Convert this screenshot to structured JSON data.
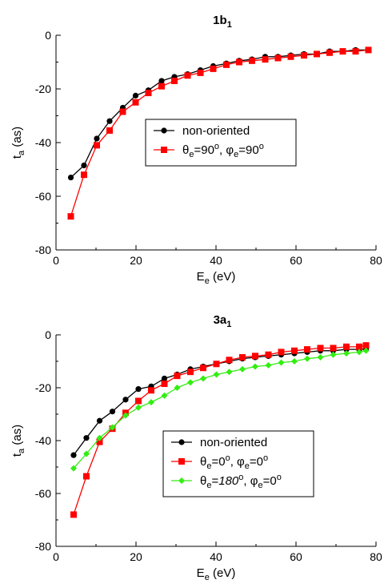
{
  "chart_data": [
    {
      "type": "line",
      "title": "1b",
      "title_sub": "1",
      "xlabel": "E",
      "xlabel_sub": "e",
      "xlabel_unit": "(eV)",
      "ylabel": "t",
      "ylabel_sub": "a",
      "ylabel_unit": "(as)",
      "xlim": [
        0,
        80
      ],
      "ylim": [
        -80,
        0
      ],
      "xticks": [
        "0",
        "20",
        "40",
        "60",
        "80"
      ],
      "yticks": [
        "0",
        "-20",
        "-40",
        "-60",
        "-80"
      ],
      "grid": false,
      "legend_position": "middle-center",
      "series": [
        {
          "legend": [
            {
              "t": "non-oriented"
            }
          ],
          "color": "#000000",
          "marker": "circle",
          "x": [
            3.7,
            7.0,
            10.2,
            13.4,
            16.7,
            19.9,
            23.1,
            26.4,
            29.6,
            32.9,
            36.1,
            39.3,
            42.6,
            45.8,
            49.0,
            52.3,
            55.5,
            58.7,
            62.0,
            65.2,
            68.4,
            71.7,
            74.9,
            78.1
          ],
          "y": [
            -53.0,
            -48.5,
            -38.5,
            -32.0,
            -27.0,
            -22.5,
            -20.5,
            -17.0,
            -15.5,
            -14.5,
            -13.0,
            -11.5,
            -10.5,
            -9.5,
            -9.0,
            -8.0,
            -8.0,
            -7.5,
            -7.0,
            -7.0,
            -6.0,
            -6.0,
            -5.5,
            -5.5
          ]
        },
        {
          "legend": [
            {
              "t": "θ"
            },
            {
              "t": "e",
              "sub": true
            },
            {
              "t": "=90"
            },
            {
              "t": "o",
              "sup": true
            },
            {
              "t": ", φ"
            },
            {
              "t": "e",
              "sub": true
            },
            {
              "t": "=90"
            },
            {
              "t": "o",
              "sup": true
            }
          ],
          "color": "#ff0000",
          "marker": "square",
          "x": [
            3.7,
            7.0,
            10.2,
            13.4,
            16.7,
            19.9,
            23.1,
            26.4,
            29.6,
            32.9,
            36.1,
            39.3,
            42.6,
            45.8,
            49.0,
            52.3,
            55.5,
            58.7,
            62.0,
            65.2,
            68.4,
            71.7,
            74.9,
            78.1
          ],
          "y": [
            -67.5,
            -52.0,
            -41.0,
            -35.5,
            -28.5,
            -25.0,
            -21.5,
            -19.0,
            -17.0,
            -15.0,
            -14.0,
            -12.5,
            -11.0,
            -10.0,
            -9.5,
            -9.0,
            -8.5,
            -8.0,
            -7.5,
            -7.0,
            -6.5,
            -6.0,
            -6.0,
            -5.5
          ]
        }
      ]
    },
    {
      "type": "line",
      "title": "3a",
      "title_sub": "1",
      "xlabel": "E",
      "xlabel_sub": "e",
      "xlabel_unit": "(eV)",
      "ylabel": "t",
      "ylabel_sub": "a",
      "ylabel_unit": "(as)",
      "xlim": [
        0,
        80
      ],
      "ylim": [
        -80,
        0
      ],
      "xticks": [
        "0",
        "20",
        "40",
        "60",
        "80"
      ],
      "yticks": [
        "0",
        "-20",
        "-40",
        "-60",
        "-80"
      ],
      "grid": false,
      "legend_position": "center-right",
      "series": [
        {
          "legend": [
            {
              "t": "non-oriented"
            }
          ],
          "color": "#000000",
          "marker": "circle",
          "x": [
            4.4,
            7.6,
            10.9,
            14.1,
            17.4,
            20.6,
            23.8,
            27.1,
            30.3,
            33.6,
            36.8,
            40.1,
            43.3,
            46.6,
            49.8,
            53.1,
            56.3,
            59.6,
            62.8,
            66.1,
            69.3,
            72.6,
            75.8,
            77.5
          ],
          "y": [
            -45.5,
            -39.0,
            -32.5,
            -29.0,
            -24.5,
            -20.5,
            -19.5,
            -16.5,
            -15.0,
            -13.0,
            -12.0,
            -11.0,
            -10.0,
            -9.0,
            -8.5,
            -8.0,
            -7.5,
            -7.0,
            -6.5,
            -6.0,
            -6.0,
            -5.5,
            -5.5,
            -5.5
          ]
        },
        {
          "legend": [
            {
              "t": "θ"
            },
            {
              "t": "e",
              "sub": true
            },
            {
              "t": "=0"
            },
            {
              "t": "o",
              "sup": true
            },
            {
              "t": ", φ"
            },
            {
              "t": "e",
              "sub": true
            },
            {
              "t": "=0"
            },
            {
              "t": "o",
              "sup": true
            }
          ],
          "color": "#ff0000",
          "marker": "square",
          "x": [
            4.4,
            7.6,
            10.9,
            14.1,
            17.4,
            20.6,
            23.8,
            27.1,
            30.3,
            33.6,
            36.8,
            40.1,
            43.3,
            46.6,
            49.8,
            53.1,
            56.3,
            59.6,
            62.8,
            66.1,
            69.3,
            72.6,
            75.8,
            77.5
          ],
          "y": [
            -68.0,
            -53.5,
            -40.5,
            -35.5,
            -29.5,
            -25.0,
            -21.0,
            -18.5,
            -15.5,
            -14.0,
            -12.5,
            -11.0,
            -9.5,
            -8.5,
            -8.0,
            -7.5,
            -6.5,
            -6.0,
            -5.5,
            -5.0,
            -5.0,
            -4.5,
            -4.5,
            -4.0
          ]
        },
        {
          "legend": [
            {
              "t": "θ"
            },
            {
              "t": "e",
              "sub": true
            },
            {
              "t": "="
            },
            {
              "t": "180",
              "italic": true
            },
            {
              "t": "o",
              "sup": true
            },
            {
              "t": ", φ"
            },
            {
              "t": "e",
              "sub": true
            },
            {
              "t": "=0"
            },
            {
              "t": "o",
              "sup": true
            }
          ],
          "color": "#33ee11",
          "marker": "diamond",
          "x": [
            4.4,
            7.6,
            10.9,
            14.1,
            17.4,
            20.6,
            23.8,
            27.1,
            30.3,
            33.6,
            36.8,
            40.1,
            43.3,
            46.6,
            49.8,
            53.1,
            56.3,
            59.6,
            62.8,
            66.1,
            69.3,
            72.6,
            75.8,
            77.5
          ],
          "y": [
            -50.5,
            -45.0,
            -39.0,
            -35.0,
            -30.5,
            -27.5,
            -25.5,
            -23.0,
            -20.0,
            -18.0,
            -16.5,
            -15.0,
            -14.0,
            -13.0,
            -12.0,
            -11.5,
            -10.5,
            -10.0,
            -9.0,
            -8.5,
            -7.5,
            -7.0,
            -6.5,
            -6.0
          ]
        }
      ]
    }
  ]
}
